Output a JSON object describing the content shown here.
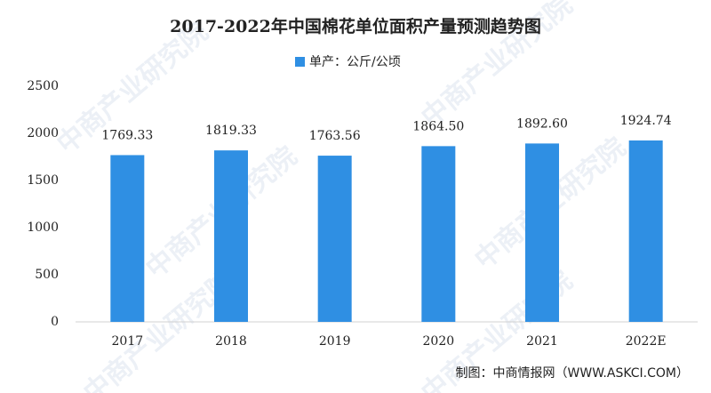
{
  "chart_data": {
    "type": "bar",
    "title": "2017-2022年中国棉花单位面积产量预测趋势图",
    "legend": "单产：公斤/公顷",
    "source": "制图：中商情报网（WWW.ASKCI.COM）",
    "watermark": "中商产业研究院",
    "categories": [
      "2017",
      "2018",
      "2019",
      "2020",
      "2021",
      "2022E"
    ],
    "values": [
      1769.33,
      1819.33,
      1763.56,
      1864.5,
      1892.6,
      1924.74
    ],
    "value_labels": [
      "1769.33",
      "1819.33",
      "1763.56",
      "1864.50",
      "1892.60",
      "1924.74"
    ],
    "color": "#2f8fe3",
    "ylim": [
      0,
      2500
    ],
    "yticks": [
      0,
      500,
      1000,
      1500,
      2000,
      2500
    ],
    "grid": false
  }
}
